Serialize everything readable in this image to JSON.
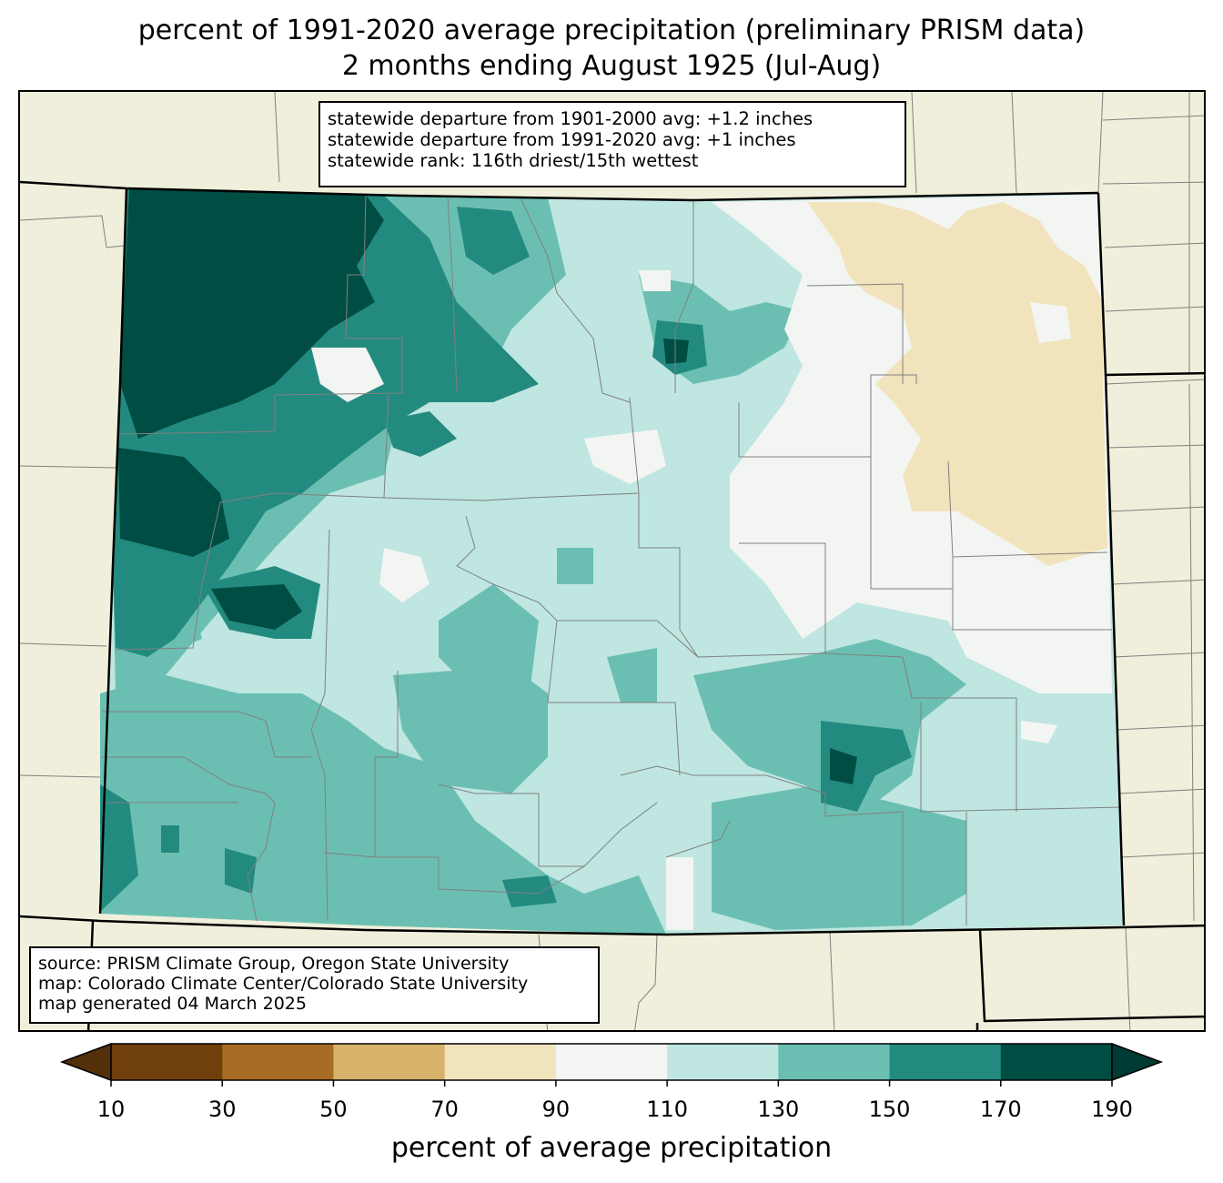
{
  "title_line1": "percent of 1991-2020 average precipitation (preliminary PRISM data)",
  "title_line2": "2 months ending August 1925 (Jul-Aug)",
  "stats": {
    "line1": "statewide departure from 1901-2000 avg: +1.2 inches",
    "line2": "statewide departure from 1991-2020 avg: +1 inches",
    "line3": "statewide rank: 116th driest/15th wettest"
  },
  "source": {
    "line1": "source: PRISM Climate Group, Oregon State University",
    "line2": "map: Colorado Climate Center/Colorado State University",
    "line3": "map generated 04 March 2025"
  },
  "colorbar": {
    "label": "percent of average precipitation",
    "ticks": [
      "10",
      "30",
      "50",
      "70",
      "90",
      "110",
      "130",
      "150",
      "170",
      "190"
    ],
    "colors": [
      "#54300a",
      "#6f3f0c",
      "#a86c24",
      "#d7b26b",
      "#f1e3bc",
      "#f3f5f3",
      "#bfe6e0",
      "#6bbfb2",
      "#238a80",
      "#004d44",
      "#003b33"
    ]
  },
  "colors": {
    "land": "#efefdb",
    "lightest": "#f3f5f3",
    "tan": "#f1e3bc",
    "light_teal": "#bfe6e0",
    "mid_teal": "#6bbfb2",
    "teal": "#238a80",
    "dark_teal": "#004d44",
    "border": "#000000",
    "county": "#808080"
  }
}
